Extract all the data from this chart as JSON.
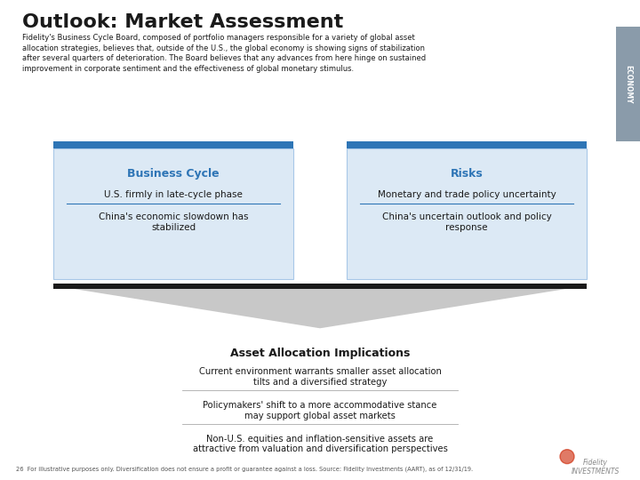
{
  "title": "Outlook: Market Assessment",
  "subtitle": "Fidelity's Business Cycle Board, composed of portfolio managers responsible for a variety of global asset\nallocation strategies, believes that, outside of the U.S., the global economy is showing signs of stabilization\nafter several quarters of deterioration. The Board believes that any advances from here hinge on sustained\nimprovement in corporate sentiment and the effectiveness of global monetary stimulus.",
  "economy_label": "ECONOMY",
  "economy_bg": "#8a9baa",
  "bg_color": "#ffffff",
  "top_bar_color": "#2e75b6",
  "box_bg": "#dce9f5",
  "box_border": "#a8c8e8",
  "dark_bar_color": "#1a1a1a",
  "triangle_color": "#c8c8c8",
  "box1_title": "Business Cycle",
  "box1_items": [
    "U.S. firmly in late-cycle phase",
    "China's economic slowdown has\nstabilized"
  ],
  "box2_title": "Risks",
  "box2_items": [
    "Monetary and trade policy uncertainty",
    "China's uncertain outlook and policy\nresponse"
  ],
  "bottom_title": "Asset Allocation Implications",
  "bottom_items": [
    "Current environment warrants smaller asset allocation\ntilts and a diversified strategy",
    "Policymakers' shift to a more accommodative stance\nmay support global asset markets",
    "Non-U.S. equities and inflation-sensitive assets are\nattractive from valuation and diversification perspectives"
  ],
  "footnote": "26  For illustrative purposes only. Diversification does not ensure a profit or guarantee against a loss. Source: Fidelity Investments (AART), as of 12/31/19.",
  "title_color": "#1a1a1a",
  "text_color": "#1a1a1a",
  "divider_color": "#2e75b6",
  "box_title_color": "#2e75b6"
}
